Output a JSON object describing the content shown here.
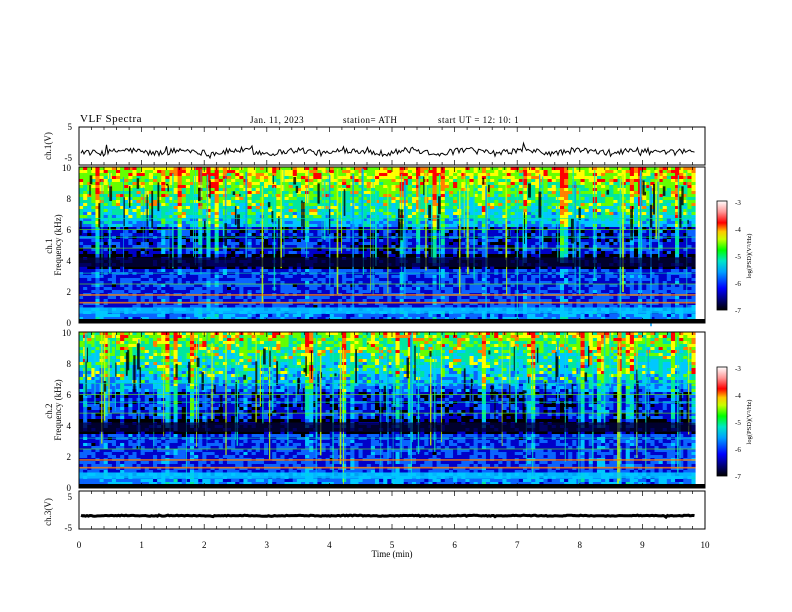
{
  "header": {
    "title": "VLF  Spectra",
    "date": "Jan.  11,  2023",
    "station": "station= ATH",
    "start": "start  UT  =   12: 10: 1"
  },
  "colors": {
    "waveform": "#000000",
    "colormap": [
      "#000000",
      "#0000c8",
      "#0a64ff",
      "#00c8ff",
      "#00e6a0",
      "#64ff00",
      "#ffff00",
      "#ff8000",
      "#ff0000",
      "#ffffff"
    ]
  },
  "chart_data": [
    {
      "type": "line",
      "name": "ch1-waveform",
      "ylabel": "ch.1(V)",
      "ylim": [
        -5,
        5
      ],
      "yticks": [
        "5",
        "-5"
      ],
      "xlim": [
        0,
        10
      ],
      "approx_level": -1.5
    },
    {
      "type": "heatmap",
      "name": "ch1-spectrogram",
      "ylabel": "ch.1\nFrequency  (kHz)",
      "ylim": [
        0,
        10
      ],
      "yticks": [
        "0",
        "2",
        "4",
        "6",
        "8",
        "10"
      ],
      "xlim": [
        0,
        10
      ],
      "colorbar": {
        "label": "log(PSD)(V²/Hz)",
        "ticks": [
          "-3",
          "-4",
          "-5",
          "-6",
          "-7"
        ],
        "range": [
          -7,
          -3
        ]
      }
    },
    {
      "type": "heatmap",
      "name": "ch2-spectrogram",
      "ylabel": "ch.2\nFrequency  (kHz)",
      "ylim": [
        0,
        10
      ],
      "yticks": [
        "0",
        "2",
        "4",
        "6",
        "8",
        "10"
      ],
      "xlim": [
        0,
        10
      ],
      "colorbar": {
        "label": "log(PSD)(V²/Hz)",
        "ticks": [
          "-3",
          "-4",
          "-5",
          "-6",
          "-7"
        ],
        "range": [
          -7,
          -3
        ]
      }
    },
    {
      "type": "line",
      "name": "ch3-waveform",
      "ylabel": "ch.3(V)",
      "ylim": [
        -5,
        5
      ],
      "yticks": [
        "5",
        "-5"
      ],
      "xlim": [
        0,
        10
      ],
      "approx_level": -1.5
    }
  ],
  "xaxis": {
    "label": "Time  (min)",
    "ticks": [
      "0",
      "1",
      "2",
      "3",
      "4",
      "5",
      "6",
      "7",
      "8",
      "9",
      "10"
    ],
    "range": [
      0,
      10
    ]
  }
}
